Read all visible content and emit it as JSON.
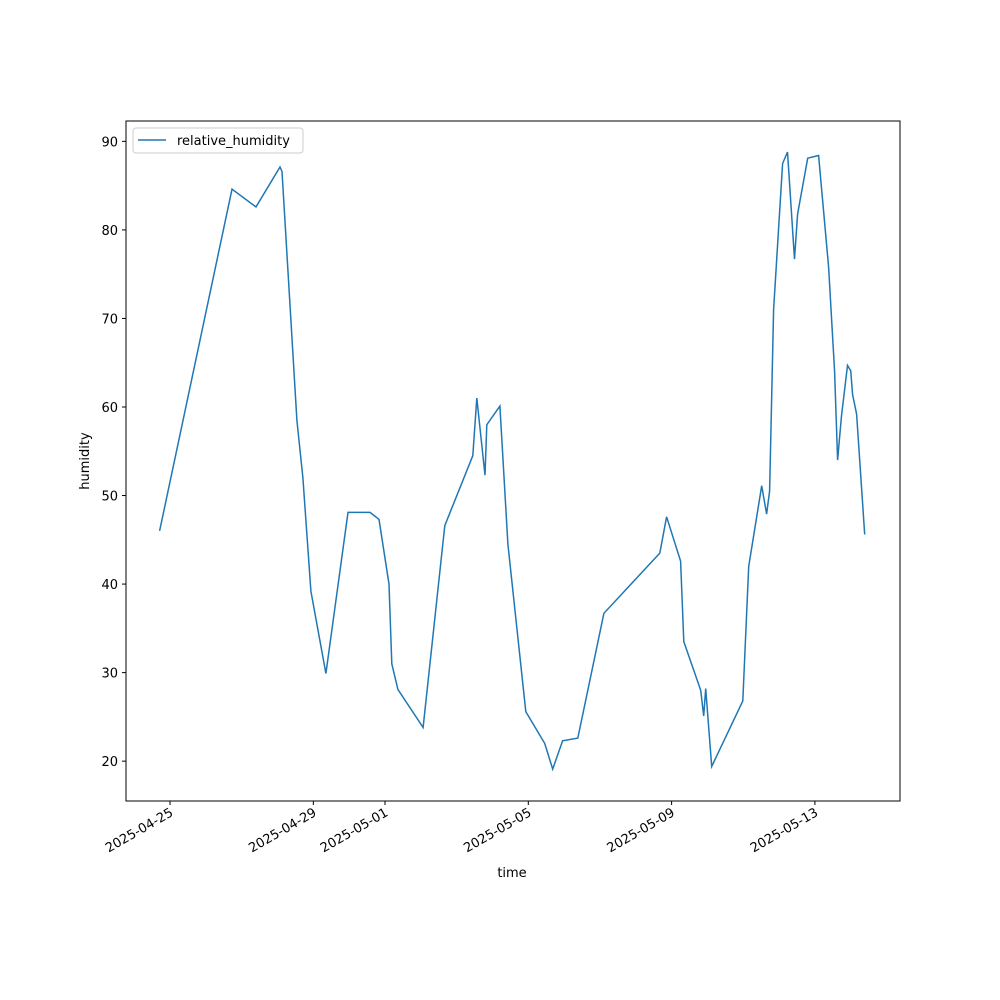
{
  "chart_data": {
    "type": "line",
    "xlabel": "time",
    "ylabel": "humidity",
    "x": [
      "2025-04-24T17:00",
      "2025-04-26T17:30",
      "2025-04-27T09:36",
      "2025-04-28T01:40",
      "2025-04-28T03:00",
      "2025-04-28T13:00",
      "2025-04-28T17:00",
      "2025-04-28T22:20",
      "2025-04-29T08:25",
      "2025-04-29T23:15",
      "2025-04-30T14:00",
      "2025-04-30T20:00",
      "2025-05-01T02:40",
      "2025-05-01T04:35",
      "2025-05-01T08:40",
      "2025-05-02T01:30",
      "2025-05-02T16:05",
      "2025-05-03T10:50",
      "2025-05-03T13:30",
      "2025-05-03T19:00",
      "2025-05-03T20:10",
      "2025-05-04T05:00",
      "2025-05-04T10:20",
      "2025-05-04T22:20",
      "2025-05-05T11:00",
      "2025-05-05T16:20",
      "2025-05-05T23:00",
      "2025-05-06T09:10",
      "2025-05-07T02:40",
      "2025-05-08T16:05",
      "2025-05-08T20:40",
      "2025-05-09T06:00",
      "2025-05-09T08:10",
      "2025-05-09T19:30",
      "2025-05-09T21:30",
      "2025-05-09T22:50",
      "2025-05-10T02:50",
      "2025-05-10T23:40",
      "2025-05-11T03:40",
      "2025-05-11T12:20",
      "2025-05-11T15:40",
      "2025-05-11T17:40",
      "2025-05-11T20:20",
      "2025-05-12T02:20",
      "2025-05-12T05:40",
      "2025-05-12T10:20",
      "2025-05-12T12:25",
      "2025-05-12T19:10",
      "2025-05-13T02:30",
      "2025-05-13T09:10",
      "2025-05-13T13:10",
      "2025-05-13T15:10",
      "2025-05-13T17:50",
      "2025-05-13T21:50",
      "2025-05-14T00:00",
      "2025-05-14T01:15",
      "2025-05-14T03:55",
      "2025-05-14T09:20"
    ],
    "series": [
      {
        "name": "relative_humidity",
        "color": "#1f77b4",
        "values": [
          46.0,
          84.6,
          82.6,
          87.1,
          86.6,
          58.5,
          52.0,
          39.2,
          29.9,
          48.1,
          48.1,
          47.3,
          40.0,
          31.0,
          28.1,
          23.8,
          46.6,
          54.5,
          61.0,
          52.3,
          58.0,
          60.1,
          44.5,
          25.6,
          22.0,
          19.1,
          22.3,
          22.6,
          36.7,
          43.5,
          47.6,
          42.6,
          33.5,
          28.0,
          25.1,
          28.2,
          19.4,
          26.8,
          42.0,
          51.1,
          47.9,
          50.5,
          71.0,
          87.5,
          88.8,
          76.7,
          81.8,
          88.1,
          88.4,
          75.8,
          64.0,
          54.0,
          59.0,
          64.7,
          64.1,
          61.4,
          59.2,
          45.6
        ]
      }
    ],
    "xlim": [
      "2025-04-23T18:30",
      "2025-05-15T09:00"
    ],
    "xticks": [
      "2025-04-25",
      "2025-04-29",
      "2025-05-01",
      "2025-05-05",
      "2025-05-09",
      "2025-05-13"
    ],
    "ylim": [
      15.5,
      92.3
    ],
    "yticks": [
      20,
      30,
      40,
      50,
      60,
      70,
      80,
      90
    ],
    "legend": "upper left"
  }
}
